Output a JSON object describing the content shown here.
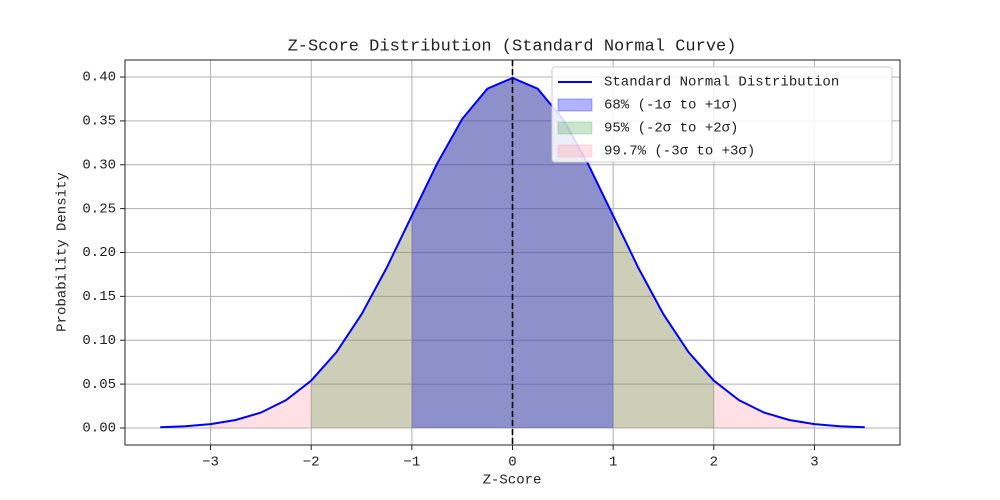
{
  "chart_data": {
    "type": "line",
    "title": "Z-Score Distribution (Standard Normal Curve)",
    "x_label": "Z-Score",
    "y_label": "Probability Density",
    "x": [
      -3.5,
      -3.25,
      -3,
      -2.75,
      -2.5,
      -2.25,
      -2,
      -1.75,
      -1.5,
      -1.25,
      -1,
      -0.75,
      -0.5,
      -0.25,
      0,
      0.25,
      0.5,
      0.75,
      1,
      1.25,
      1.5,
      1.75,
      2,
      2.25,
      2.5,
      2.75,
      3,
      3.25,
      3.5
    ],
    "series": [
      {
        "name": "Standard Normal Distribution",
        "color": "#0000ff",
        "values": [
          0.0009,
          0.002,
          0.0044,
          0.0091,
          0.0175,
          0.0317,
          0.054,
          0.0863,
          0.1295,
          0.1826,
          0.242,
          0.3011,
          0.3521,
          0.3867,
          0.3989,
          0.3867,
          0.3521,
          0.3011,
          0.242,
          0.1826,
          0.1295,
          0.0863,
          0.054,
          0.0317,
          0.0175,
          0.0091,
          0.0044,
          0.002,
          0.0009
        ]
      }
    ],
    "fills": [
      {
        "name": "68% (-1σ to +1σ)",
        "color": "#0000ff",
        "opacity": 0.3,
        "range": [
          -1,
          1
        ]
      },
      {
        "name": "95% (-2σ to +2σ)",
        "color": "#008000",
        "opacity": 0.2,
        "range": [
          -2,
          2
        ]
      },
      {
        "name": "99.7% (-3σ to +3σ)",
        "color": "#ff9aa8",
        "opacity": 0.3,
        "range": [
          -3,
          3
        ]
      }
    ],
    "vline": 0,
    "xlim": [
      -3.85,
      3.85
    ],
    "xticks": [
      {
        "value": -3,
        "label": "−3"
      },
      {
        "value": -2,
        "label": "−2"
      },
      {
        "value": -1,
        "label": "−1"
      },
      0,
      1,
      2,
      3
    ],
    "ylim": [
      -0.0194,
      0.4194
    ],
    "yticks": [
      {
        "value": 0,
        "label": "0.00"
      },
      {
        "value": 0.05,
        "label": "0.05"
      },
      {
        "value": 0.1,
        "label": "0.10"
      },
      {
        "value": 0.15,
        "label": "0.15"
      },
      {
        "value": 0.2,
        "label": "0.20"
      },
      {
        "value": 0.25,
        "label": "0.25"
      },
      {
        "value": 0.3,
        "label": "0.30"
      },
      {
        "value": 0.35,
        "label": "0.35"
      },
      {
        "value": 0.4,
        "label": "0.40"
      }
    ],
    "grid": true,
    "legend": "upper right"
  }
}
